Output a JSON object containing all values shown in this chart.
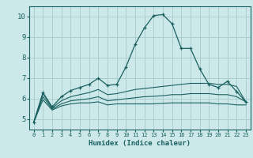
{
  "xlabel": "Humidex (Indice chaleur)",
  "bg_color": "#cce8e8",
  "grid_color": "#aacece",
  "line_color": "#1a6060",
  "xlim": [
    -0.5,
    23.5
  ],
  "ylim": [
    4.5,
    10.5
  ],
  "xticks": [
    0,
    1,
    2,
    3,
    4,
    5,
    6,
    7,
    8,
    9,
    10,
    11,
    12,
    13,
    14,
    15,
    16,
    17,
    18,
    19,
    20,
    21,
    22,
    23
  ],
  "yticks": [
    5,
    6,
    7,
    8,
    9,
    10
  ],
  "main_x": [
    0,
    1,
    2,
    3,
    4,
    5,
    6,
    7,
    8,
    9,
    10,
    11,
    12,
    13,
    14,
    15,
    16,
    17,
    18,
    19,
    20,
    21,
    22,
    23
  ],
  "main_y": [
    4.85,
    6.3,
    5.6,
    6.1,
    6.4,
    6.55,
    6.7,
    7.0,
    6.65,
    6.7,
    7.55,
    8.65,
    9.45,
    10.05,
    10.1,
    9.65,
    8.45,
    8.45,
    7.45,
    6.7,
    6.55,
    6.85,
    6.35,
    5.85
  ],
  "line2_x": [
    0,
    1,
    2,
    3,
    4,
    5,
    6,
    7,
    8,
    9,
    10,
    11,
    12,
    13,
    14,
    15,
    16,
    17,
    18,
    19,
    20,
    21,
    22,
    23
  ],
  "line2_y": [
    4.85,
    6.25,
    5.55,
    5.9,
    6.1,
    6.2,
    6.3,
    6.45,
    6.2,
    6.25,
    6.35,
    6.45,
    6.5,
    6.55,
    6.6,
    6.65,
    6.7,
    6.75,
    6.75,
    6.75,
    6.7,
    6.7,
    6.6,
    5.85
  ],
  "line3_x": [
    0,
    1,
    2,
    3,
    4,
    5,
    6,
    7,
    8,
    9,
    10,
    11,
    12,
    13,
    14,
    15,
    16,
    17,
    18,
    19,
    20,
    21,
    22,
    23
  ],
  "line3_y": [
    4.85,
    6.1,
    5.5,
    5.75,
    5.9,
    5.95,
    6.0,
    6.1,
    5.9,
    5.95,
    6.0,
    6.05,
    6.1,
    6.12,
    6.15,
    6.2,
    6.2,
    6.25,
    6.25,
    6.25,
    6.2,
    6.2,
    6.1,
    5.85
  ],
  "line4_x": [
    0,
    1,
    2,
    3,
    4,
    5,
    6,
    7,
    8,
    9,
    10,
    11,
    12,
    13,
    14,
    15,
    16,
    17,
    18,
    19,
    20,
    21,
    22,
    23
  ],
  "line4_y": [
    4.85,
    5.95,
    5.45,
    5.65,
    5.75,
    5.8,
    5.8,
    5.85,
    5.7,
    5.75,
    5.75,
    5.75,
    5.75,
    5.75,
    5.78,
    5.8,
    5.8,
    5.8,
    5.8,
    5.8,
    5.75,
    5.75,
    5.7,
    5.7
  ]
}
